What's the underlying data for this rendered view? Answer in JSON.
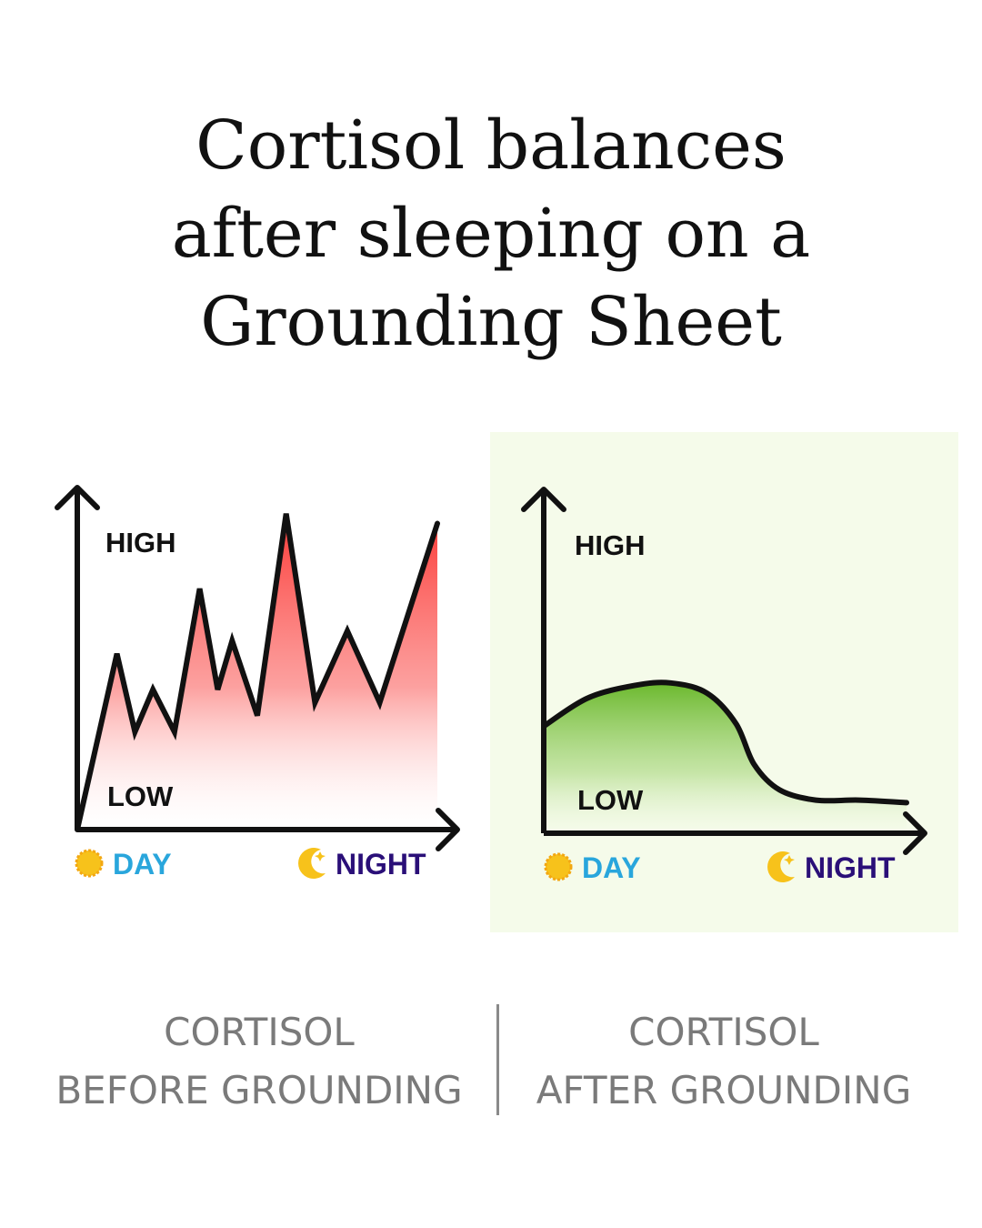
{
  "title": {
    "line1": "Cortisol balances",
    "line2": "after sleeping on a",
    "line3": "Grounding Sheet"
  },
  "colors": {
    "before_fill": "#fb3a36",
    "after_fill": "#6ab82c",
    "after_panel_bg": "#f5fbea",
    "axis": "#111111",
    "day_text": "#29a6dc",
    "night_text": "#2a0f78",
    "sun": "#f7c21b",
    "moon": "#f7c21b",
    "caption": "#7a7a7a"
  },
  "icons": [
    "sun-icon",
    "moon-icon"
  ],
  "chart_data": [
    {
      "type": "area",
      "title": "",
      "xlabel": "",
      "ylabel": "",
      "x_labels": [
        "DAY",
        "NIGHT"
      ],
      "y_labels": [
        "HIGH",
        "LOW"
      ],
      "xlim": [
        0,
        100
      ],
      "ylim": [
        0,
        100
      ],
      "series": [
        {
          "x": [
            0,
            11,
            16,
            21,
            27,
            34,
            39,
            43,
            50,
            58,
            66,
            75,
            84,
            100
          ],
          "y": [
            0,
            54,
            30,
            43,
            30,
            74,
            43,
            58,
            35,
            97,
            39,
            61,
            39,
            94
          ]
        }
      ],
      "caption": {
        "line1": "CORTISOL",
        "line2": "BEFORE GROUNDING"
      }
    },
    {
      "type": "area",
      "title": "",
      "xlabel": "",
      "ylabel": "",
      "x_labels": [
        "DAY",
        "NIGHT"
      ],
      "y_labels": [
        "HIGH",
        "LOW"
      ],
      "xlim": [
        0,
        100
      ],
      "ylim": [
        0,
        100
      ],
      "series": [
        {
          "x": [
            0,
            12,
            25,
            35,
            45,
            53,
            58,
            65,
            75,
            87,
            100
          ],
          "y": [
            42,
            53,
            58,
            59,
            55,
            43,
            27,
            17,
            13,
            13,
            12
          ]
        }
      ],
      "caption": {
        "line1": "CORTISOL",
        "line2": "AFTER GROUNDING"
      }
    }
  ]
}
